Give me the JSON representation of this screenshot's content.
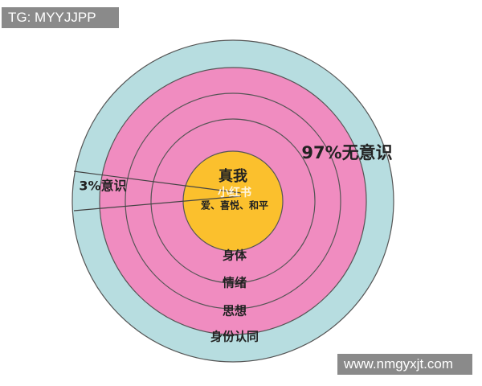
{
  "watermark_top": "TG: MYYJJPP",
  "watermark_bottom": "www.nmgyxjt.com",
  "labels": {
    "unconscious": "97%无意识",
    "conscious": "3%意识",
    "core": "真我",
    "core_sub": "爱、喜悦、和平",
    "overlay": "小红书"
  },
  "rings": [
    "身体",
    "情绪",
    "思想",
    "身份认同"
  ]
}
